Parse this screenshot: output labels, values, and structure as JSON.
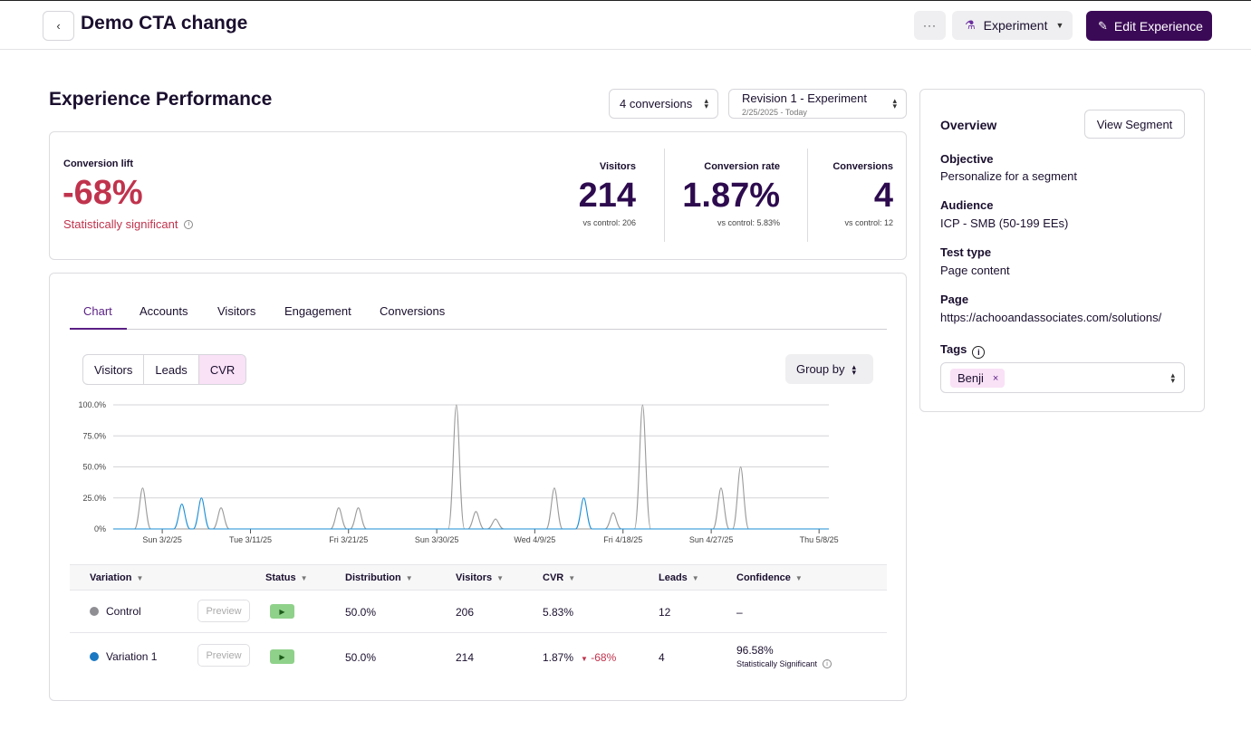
{
  "header": {
    "back_icon": "chevron-left-icon",
    "title": "Demo CTA change",
    "more_label": "···",
    "mode_label": "Experiment",
    "edit_label": "Edit Experience"
  },
  "performance": {
    "title": "Experience Performance",
    "conversions_select": "4 conversions",
    "revision_select": "Revision 1 - Experiment",
    "revision_dates": "2/25/2025 - Today"
  },
  "metrics": {
    "lift_label": "Conversion lift",
    "lift_value": "-68%",
    "lift_note": "Statistically significant",
    "visitors_label": "Visitors",
    "visitors_value": "214",
    "visitors_sub": "vs control: 206",
    "cvr_label": "Conversion rate",
    "cvr_value": "1.87%",
    "cvr_sub": "vs control: 5.83%",
    "conv_label": "Conversions",
    "conv_value": "4",
    "conv_sub": "vs control: 12"
  },
  "tabs": [
    "Chart",
    "Accounts",
    "Visitors",
    "Engagement",
    "Conversions"
  ],
  "chart_controls": {
    "segments": [
      "Visitors",
      "Leads",
      "CVR"
    ],
    "group_by": "Group by"
  },
  "chart_data": {
    "type": "line",
    "x_tick_labels": [
      "Sun 3/2/25",
      "Tue 3/11/25",
      "Fri 3/21/25",
      "Sun 3/30/25",
      "Wed 4/9/25",
      "Fri 4/18/25",
      "Sun 4/27/25",
      "Thu 5/8/25"
    ],
    "y_tick_labels": [
      "100.0%",
      "75.0%",
      "50.0%",
      "25.0%",
      "0%"
    ],
    "ylim": [
      0,
      100
    ],
    "x_range": [
      "2025-02-25",
      "2025-05-09"
    ],
    "colors": {
      "control": "#9a9a9a",
      "variation": "#1a8ed6"
    },
    "series": [
      {
        "color": "#9a9a9a",
        "peaks": [
          [
            3,
            33
          ],
          [
            11,
            17
          ],
          [
            23,
            17
          ],
          [
            25,
            17
          ],
          [
            35,
            100
          ],
          [
            37,
            14
          ],
          [
            39,
            8
          ],
          [
            45,
            33
          ],
          [
            51,
            13
          ],
          [
            54,
            100
          ],
          [
            62,
            33
          ],
          [
            64,
            50
          ]
        ]
      },
      {
        "color": "#1a8ed6",
        "peaks": [
          [
            7,
            20
          ],
          [
            9,
            25
          ],
          [
            48,
            25
          ]
        ]
      }
    ]
  },
  "table": {
    "headers": [
      "Variation",
      "Status",
      "Distribution",
      "Visitors",
      "CVR",
      "Leads",
      "Confidence"
    ],
    "rows": [
      {
        "name": "Control",
        "dot": "#8e8e93",
        "preview": "Preview",
        "distribution": "50.0%",
        "visitors": "206",
        "cvr": "5.83%",
        "cvr_delta": "",
        "leads": "12",
        "confidence": "–",
        "confidence_note": ""
      },
      {
        "name": "Variation 1",
        "dot": "#1a78c2",
        "preview": "Preview",
        "distribution": "50.0%",
        "visitors": "214",
        "cvr": "1.87%",
        "cvr_delta": "-68%",
        "leads": "4",
        "confidence": "96.58%",
        "confidence_note": "Statistically Significant"
      }
    ]
  },
  "overview": {
    "title": "Overview",
    "view_segment": "View Segment",
    "objective_label": "Objective",
    "objective_value": "Personalize for a segment",
    "audience_label": "Audience",
    "audience_value": "ICP - SMB (50-199 EEs)",
    "test_type_label": "Test type",
    "test_type_value": "Page content",
    "page_label": "Page",
    "page_value": "https://achooandassociates.com/solutions/",
    "tags_label": "Tags",
    "tag": "Benji"
  }
}
